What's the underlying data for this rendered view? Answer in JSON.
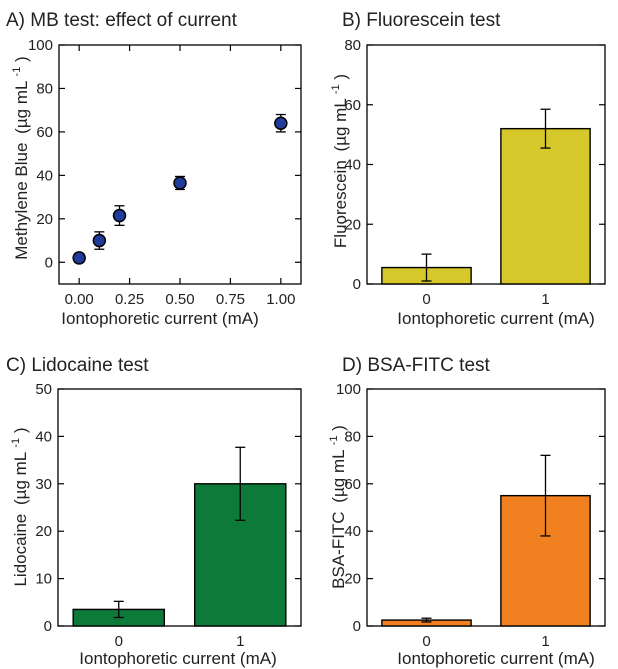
{
  "chart_data": [
    {
      "id": "A",
      "type": "scatter",
      "title": "A) MB test: effect of current",
      "xlabel": "Iontophoretic current (mA)",
      "ylabel": "Methylene Blue",
      "ylabel_unit": "(µg mL",
      "ylabel_sup": "-1",
      "ylabel_close": ")",
      "xlim": [
        -0.1,
        1.1
      ],
      "ylim": [
        -10,
        100
      ],
      "xticks": [
        0,
        0.25,
        0.5,
        0.75,
        1.0
      ],
      "xtick_labels": [
        "0.00",
        "0.25",
        "0.50",
        "0.75",
        "1.00"
      ],
      "yticks": [
        0,
        20,
        40,
        60,
        80,
        100
      ],
      "ytick_labels": [
        "0",
        "20",
        "40",
        "60",
        "80",
        "100"
      ],
      "marker_color": "#1f3b9c",
      "points": [
        {
          "x": 0.0,
          "y": 2,
          "err": 2
        },
        {
          "x": 0.1,
          "y": 10,
          "err": 4
        },
        {
          "x": 0.2,
          "y": 21.5,
          "err": 4.5
        },
        {
          "x": 0.5,
          "y": 36.5,
          "err": 3
        },
        {
          "x": 1.0,
          "y": 64,
          "err": 4
        }
      ]
    },
    {
      "id": "B",
      "type": "bar",
      "title": "B) Fluorescein test",
      "xlabel": "Iontophoretic current (mA)",
      "ylabel": "Fluorescein",
      "ylabel_unit": "(µg mL",
      "ylabel_sup": "-1",
      "ylabel_close": ")",
      "ylim": [
        0,
        80
      ],
      "yticks": [
        0,
        20,
        40,
        60,
        80
      ],
      "ytick_labels": [
        "0",
        "20",
        "40",
        "60",
        "80"
      ],
      "categories": [
        "0",
        "1"
      ],
      "values": [
        5.5,
        52
      ],
      "errors": [
        4.5,
        6.5
      ],
      "bar_color": "#d6c72a"
    },
    {
      "id": "C",
      "type": "bar",
      "title": "C) Lidocaine test",
      "xlabel": "Iontophoretic current (mA)",
      "ylabel": "Lidocaine",
      "ylabel_unit": "(µg mL",
      "ylabel_sup": "-1",
      "ylabel_close": ")",
      "ylim": [
        0,
        50
      ],
      "yticks": [
        0,
        10,
        20,
        30,
        40,
        50
      ],
      "ytick_labels": [
        "0",
        "10",
        "20",
        "30",
        "40",
        "50"
      ],
      "categories": [
        "0",
        "1"
      ],
      "values": [
        3.5,
        30
      ],
      "errors": [
        1.7,
        7.7
      ],
      "bar_color": "#0e7a3a"
    },
    {
      "id": "D",
      "type": "bar",
      "title": "D) BSA-FITC test",
      "xlabel": "Iontophoretic current (mA)",
      "ylabel": "BSA-FITC",
      "ylabel_unit": "(µg mL",
      "ylabel_sup": "-1",
      "ylabel_close": ")",
      "ylim": [
        0,
        100
      ],
      "yticks": [
        0,
        20,
        40,
        60,
        80,
        100
      ],
      "ytick_labels": [
        "0",
        "20",
        "40",
        "60",
        "80",
        "100"
      ],
      "categories": [
        "0",
        "1"
      ],
      "values": [
        2.5,
        55
      ],
      "errors": [
        0.8,
        17
      ],
      "bar_color": "#f08020"
    }
  ]
}
